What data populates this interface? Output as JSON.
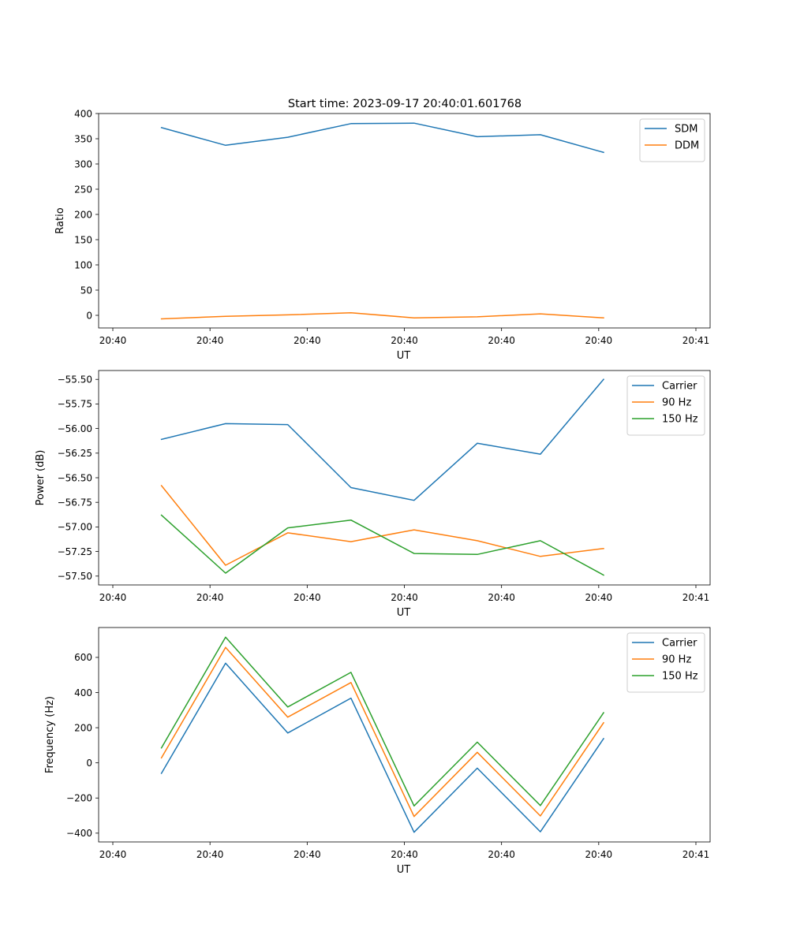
{
  "figure": {
    "title": "Start time: 2023-09-17 20:40:01.601768"
  },
  "colors": {
    "blue": "#1f77b4",
    "orange": "#ff7f0e",
    "green": "#2ca02c"
  },
  "chart_data": [
    {
      "type": "line",
      "title": "Start time: 2023-09-17 20:40:01.601768",
      "xlabel": "UT",
      "ylabel": "Ratio",
      "x": [
        0.5,
        1.16,
        1.8,
        2.45,
        3.1,
        3.75,
        4.4,
        5.05
      ],
      "xlim": [
        0,
        6
      ],
      "xticks": [
        0,
        1,
        2,
        3,
        4,
        5,
        6
      ],
      "xtick_labels": [
        "20:40",
        "20:40",
        "20:40",
        "20:40",
        "20:40",
        "20:40",
        "20:41"
      ],
      "ylim": [
        -25,
        400
      ],
      "yticks": [
        0,
        50,
        100,
        150,
        200,
        250,
        300,
        350,
        400
      ],
      "ytick_labels": [
        "0",
        "50",
        "100",
        "150",
        "200",
        "250",
        "300",
        "350",
        "400"
      ],
      "legend": "top-right",
      "grid": false,
      "series": [
        {
          "name": "SDM",
          "color": "#1f77b4",
          "values": [
            372,
            337,
            353,
            380,
            381,
            354,
            358,
            323
          ]
        },
        {
          "name": "DDM",
          "color": "#ff7f0e",
          "values": [
            -7,
            -2,
            1,
            5,
            -5,
            -3,
            3,
            -5
          ]
        }
      ]
    },
    {
      "type": "line",
      "title": "",
      "xlabel": "UT",
      "ylabel": "Power (dB)",
      "x": [
        0.5,
        1.16,
        1.8,
        2.45,
        3.1,
        3.75,
        4.4,
        5.05
      ],
      "xlim": [
        0,
        6
      ],
      "xticks": [
        0,
        1,
        2,
        3,
        4,
        5,
        6
      ],
      "xtick_labels": [
        "20:40",
        "20:40",
        "20:40",
        "20:40",
        "20:40",
        "20:40",
        "20:41"
      ],
      "ylim": [
        -57.59,
        -55.41
      ],
      "yticks": [
        -57.5,
        -57.25,
        -57.0,
        -56.75,
        -56.5,
        -56.25,
        -56.0,
        -55.75,
        -55.5
      ],
      "ytick_labels": [
        "−57.50",
        "−57.25",
        "−57.00",
        "−56.75",
        "−56.50",
        "−56.25",
        "−56.00",
        "−55.75",
        "−55.50"
      ],
      "legend": "top-right",
      "grid": false,
      "series": [
        {
          "name": "Carrier",
          "color": "#1f77b4",
          "values": [
            -56.11,
            -55.95,
            -55.96,
            -56.6,
            -56.73,
            -56.15,
            -56.26,
            -55.5
          ]
        },
        {
          "name": "90 Hz",
          "color": "#ff7f0e",
          "values": [
            -56.58,
            -57.39,
            -57.06,
            -57.15,
            -57.03,
            -57.14,
            -57.3,
            -57.22
          ]
        },
        {
          "name": "150 Hz",
          "color": "#2ca02c",
          "values": [
            -56.88,
            -57.47,
            -57.01,
            -56.93,
            -57.27,
            -57.28,
            -57.14,
            -57.49
          ]
        }
      ]
    },
    {
      "type": "line",
      "title": "",
      "xlabel": "UT",
      "ylabel": "Frequency (Hz)",
      "x": [
        0.5,
        1.16,
        1.8,
        2.45,
        3.1,
        3.75,
        4.4,
        5.05
      ],
      "xlim": [
        0,
        6
      ],
      "xticks": [
        0,
        1,
        2,
        3,
        4,
        5,
        6
      ],
      "xtick_labels": [
        "20:40",
        "20:40",
        "20:40",
        "20:40",
        "20:40",
        "20:40",
        "20:41"
      ],
      "ylim": [
        -450,
        770
      ],
      "yticks": [
        -400,
        -200,
        0,
        200,
        400,
        600
      ],
      "ytick_labels": [
        "−400",
        "−200",
        "0",
        "200",
        "400",
        "600"
      ],
      "legend": "top-right",
      "grid": false,
      "series": [
        {
          "name": "Carrier",
          "color": "#1f77b4",
          "values": [
            -60,
            567,
            170,
            368,
            -395,
            -30,
            -392,
            138
          ]
        },
        {
          "name": "90 Hz",
          "color": "#ff7f0e",
          "values": [
            28,
            657,
            260,
            457,
            -305,
            60,
            -302,
            228
          ]
        },
        {
          "name": "150 Hz",
          "color": "#2ca02c",
          "values": [
            85,
            715,
            318,
            515,
            -245,
            118,
            -243,
            285
          ]
        }
      ]
    }
  ]
}
